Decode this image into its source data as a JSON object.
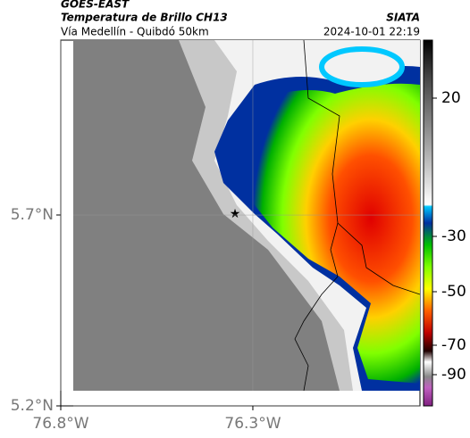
{
  "header": {
    "satellite": "GOES-EAST",
    "product": "Temperatura de Brillo CH13",
    "source": "SIATA",
    "region": "Vía Medellín - Quibdó 50km",
    "timestamp": "2024-10-01 22:19"
  },
  "map": {
    "lon_range": [
      -76.8,
      -75.865
    ],
    "lat_range": [
      5.2,
      6.158
    ],
    "lat_ticks": [
      {
        "value": 5.7,
        "label": "5.7°N"
      },
      {
        "value": 5.2,
        "label": "5.2°N"
      }
    ],
    "lon_ticks": [
      {
        "value": -76.8,
        "label": "76.8°W"
      },
      {
        "value": -76.3,
        "label": "76.3°W"
      }
    ],
    "grid": true
  },
  "colorbar": {
    "ticks": [
      20,
      -30,
      -50,
      -70,
      -90
    ]
  }
}
